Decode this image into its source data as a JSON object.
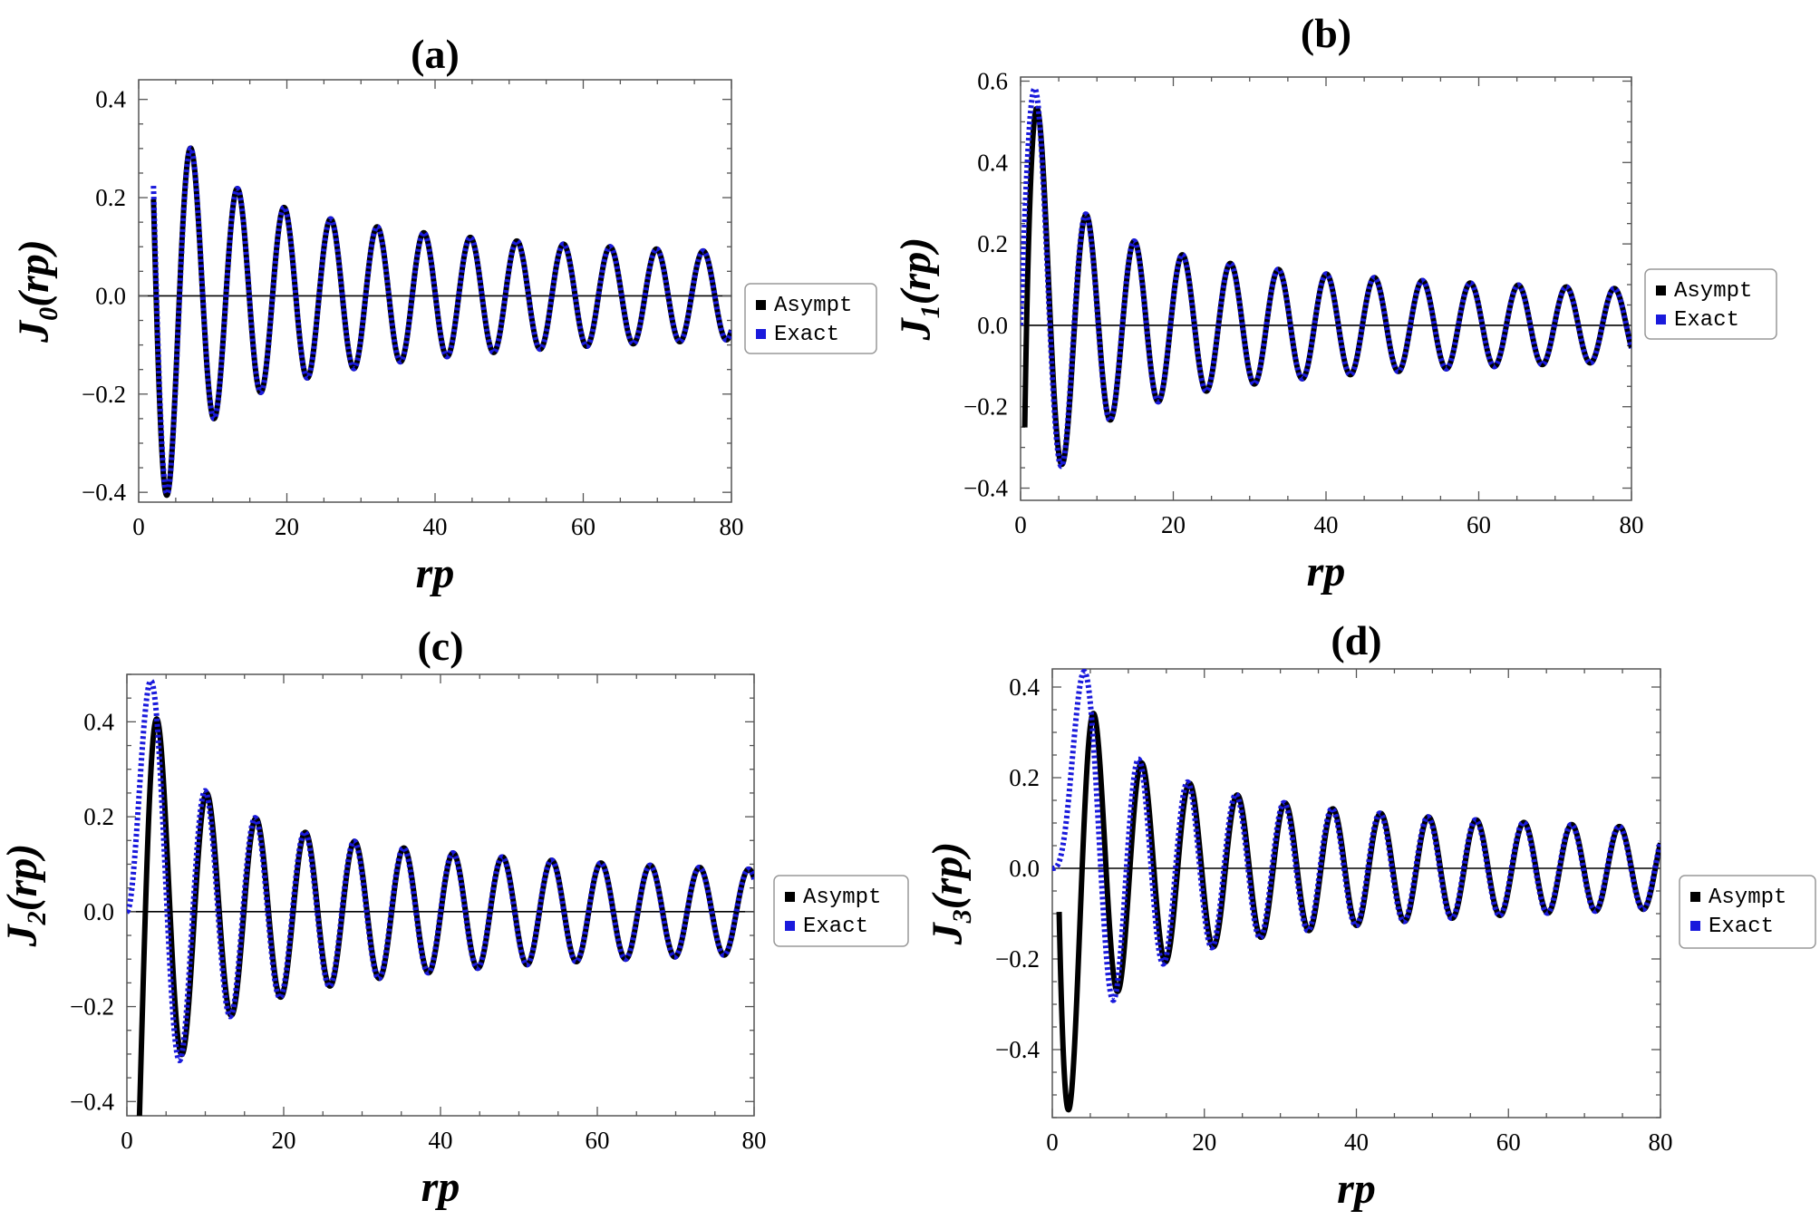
{
  "chart_data": [
    {
      "type": "line",
      "title": "(a)",
      "order": 0,
      "xlabel": "rp",
      "ylabel_symbol": "J",
      "ylabel_subscript": "0",
      "ylabel_args": "(rp)",
      "xlim": [
        0,
        80
      ],
      "ylim": [
        -0.42,
        0.44
      ],
      "x_ticks": [
        "0",
        "20",
        "40",
        "60",
        "80"
      ],
      "y_ticks": [
        "−0.4",
        "−0.2",
        "0.0",
        "0.2",
        "0.4"
      ],
      "x_range": [
        2,
        80
      ],
      "series": [
        {
          "name": "Asympt",
          "color": "#000000",
          "style": "solid",
          "formula": "asymptotic Bessel J0"
        },
        {
          "name": "Exact",
          "color": "#1a1adc",
          "style": "dotted",
          "formula": "Bessel J0"
        }
      ],
      "legend": {
        "position": "right",
        "labels": [
          "Asympt",
          "Exact"
        ]
      }
    },
    {
      "type": "line",
      "title": "(b)",
      "order": 1,
      "xlabel": "rp",
      "ylabel_symbol": "J",
      "ylabel_subscript": "1",
      "ylabel_args": "(rp)",
      "xlim": [
        0,
        80
      ],
      "ylim": [
        -0.43,
        0.61
      ],
      "x_ticks": [
        "0",
        "20",
        "40",
        "60",
        "80"
      ],
      "y_ticks": [
        "−0.4",
        "−0.2",
        "0.0",
        "0.2",
        "0.4",
        "0.6"
      ],
      "x_range": [
        0,
        80
      ],
      "series": [
        {
          "name": "Asympt",
          "color": "#000000",
          "style": "solid",
          "formula": "asymptotic Bessel J1"
        },
        {
          "name": "Exact",
          "color": "#1a1adc",
          "style": "dotted",
          "formula": "Bessel J1"
        }
      ],
      "legend": {
        "position": "right",
        "labels": [
          "Asympt",
          "Exact"
        ]
      }
    },
    {
      "type": "line",
      "title": "(c)",
      "order": 2,
      "xlabel": "rp",
      "ylabel_symbol": "J",
      "ylabel_subscript": "2",
      "ylabel_args": "(rp)",
      "xlim": [
        0,
        80
      ],
      "ylim": [
        -0.43,
        0.5
      ],
      "x_ticks": [
        "0",
        "20",
        "40",
        "60",
        "80"
      ],
      "y_ticks": [
        "−0.4",
        "−0.2",
        "0.0",
        "0.2",
        "0.4"
      ],
      "x_range": [
        0,
        80
      ],
      "series": [
        {
          "name": "Asympt",
          "color": "#000000",
          "style": "solid",
          "formula": "asymptotic Bessel J2"
        },
        {
          "name": "Exact",
          "color": "#1a1adc",
          "style": "dotted",
          "formula": "Bessel J2"
        }
      ],
      "legend": {
        "position": "right",
        "labels": [
          "Asympt",
          "Exact"
        ]
      }
    },
    {
      "type": "line",
      "title": "(d)",
      "order": 3,
      "xlabel": "rp",
      "ylabel_symbol": "J",
      "ylabel_subscript": "3",
      "ylabel_args": "(rp)",
      "xlim": [
        0,
        80
      ],
      "ylim": [
        -0.55,
        0.44
      ],
      "x_ticks": [
        "0",
        "20",
        "40",
        "60",
        "80"
      ],
      "y_ticks": [
        "−0.4",
        "−0.2",
        "0.0",
        "0.2",
        "0.4"
      ],
      "x_range": [
        0,
        80
      ],
      "series": [
        {
          "name": "Asympt",
          "color": "#000000",
          "style": "solid",
          "formula": "asymptotic Bessel J3"
        },
        {
          "name": "Exact",
          "color": "#1a1adc",
          "style": "dotted",
          "formula": "Bessel J3"
        }
      ],
      "legend": {
        "position": "right",
        "labels": [
          "Asympt",
          "Exact"
        ]
      }
    }
  ]
}
